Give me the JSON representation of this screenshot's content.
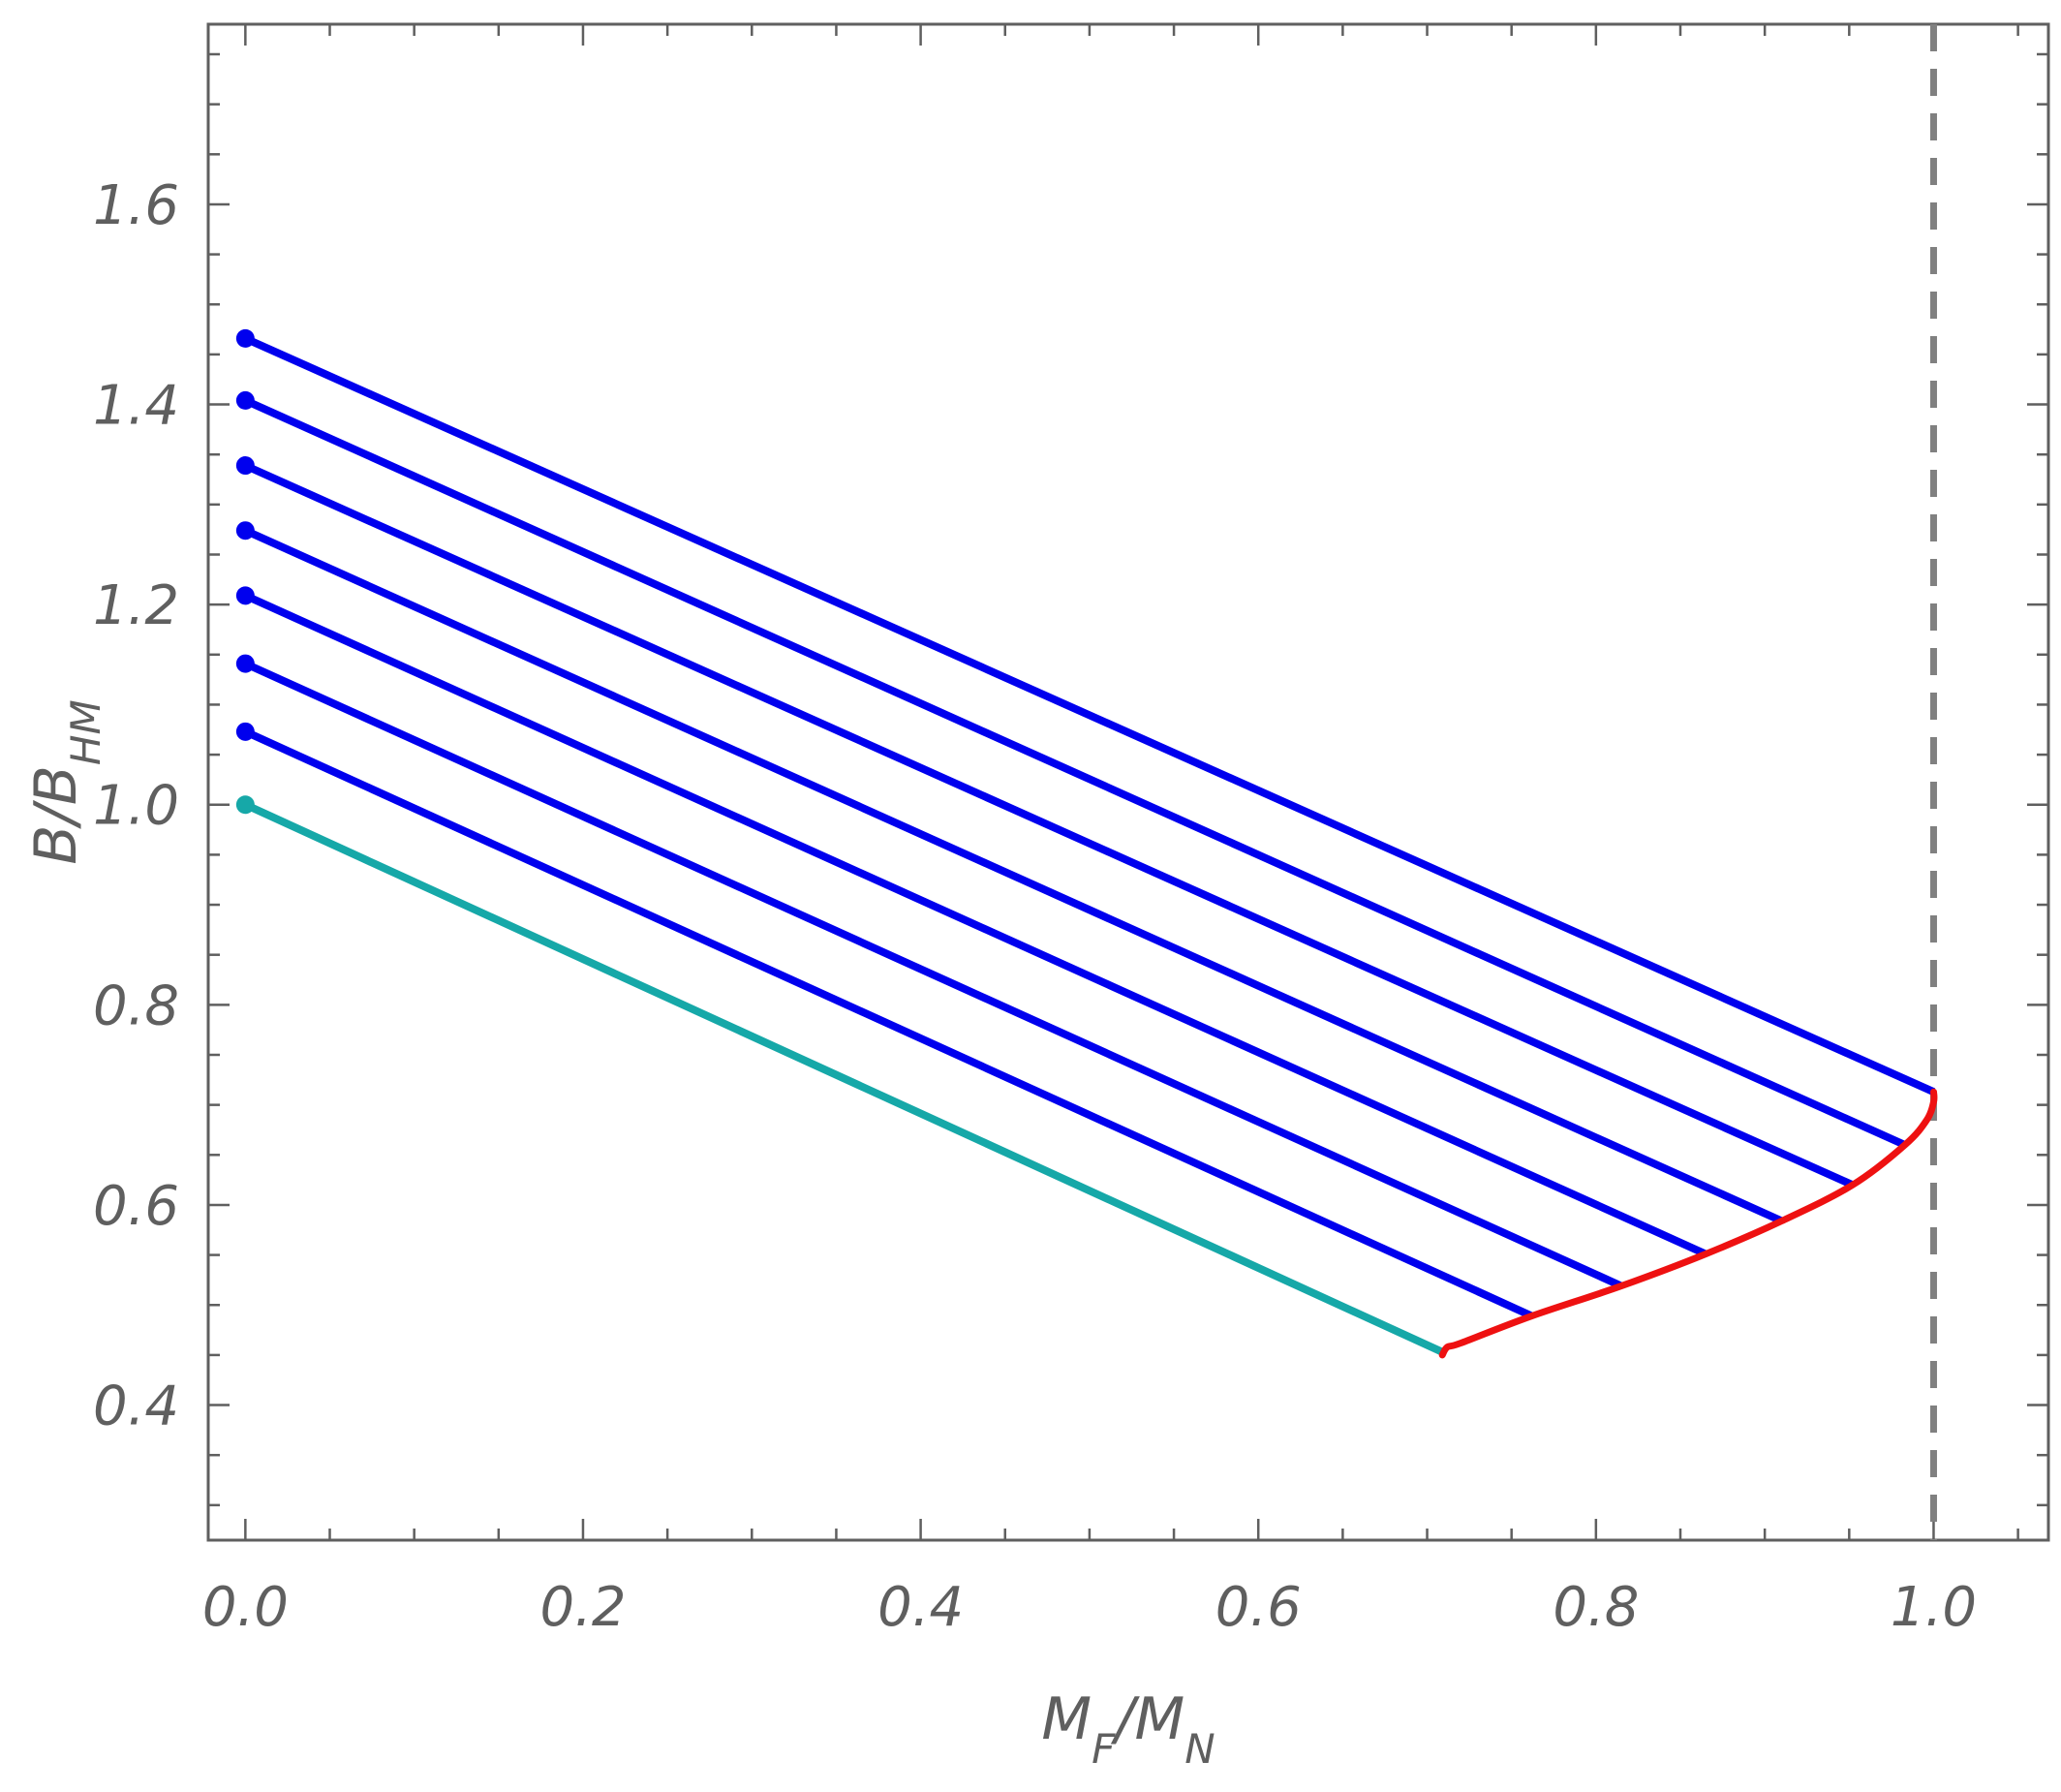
{
  "chart_data": {
    "type": "line",
    "xlabel": {
      "main": "M",
      "sub": "F",
      "sep": "/",
      "main2": "M",
      "sub2": "N"
    },
    "ylabel": {
      "main": "B",
      "sep": "/",
      "main2": "B",
      "sub2": "HM"
    },
    "xlim": [
      -0.022,
      1.068
    ],
    "ylim": [
      0.265,
      1.78
    ],
    "x_ticks": [
      0.0,
      0.2,
      0.4,
      0.6,
      0.8,
      1.0
    ],
    "x_tick_labels": [
      "0.0",
      "0.2",
      "0.4",
      "0.6",
      "0.8",
      "1.0"
    ],
    "y_ticks": [
      0.4,
      0.6,
      0.8,
      1.0,
      1.2,
      1.4,
      1.6
    ],
    "y_tick_labels": [
      "0.4",
      "0.6",
      "0.8",
      "1.0",
      "1.2",
      "1.4",
      "1.6"
    ],
    "grid": false,
    "legend": "none",
    "colors": {
      "blue": "#0000ee",
      "teal": "#16a8a8",
      "red": "#ee1111",
      "dashed": "#808080",
      "frame": "#5f5f5f"
    },
    "series": [
      {
        "color": "teal",
        "x": [
          0.0,
          0.709
        ],
        "y": [
          1.0,
          0.453
        ],
        "start_marker": true
      },
      {
        "color": "blue",
        "x": [
          0.0,
          0.762
        ],
        "y": [
          1.073,
          0.489
        ],
        "start_marker": true
      },
      {
        "color": "blue",
        "x": [
          0.0,
          0.815
        ],
        "y": [
          1.141,
          0.519
        ],
        "start_marker": true
      },
      {
        "color": "blue",
        "x": [
          0.0,
          0.865
        ],
        "y": [
          1.209,
          0.551
        ],
        "start_marker": true
      },
      {
        "color": "blue",
        "x": [
          0.0,
          0.91
        ],
        "y": [
          1.274,
          0.584
        ],
        "start_marker": true
      },
      {
        "color": "blue",
        "x": [
          0.0,
          0.952
        ],
        "y": [
          1.339,
          0.62
        ],
        "start_marker": true
      },
      {
        "color": "blue",
        "x": [
          0.0,
          0.983
        ],
        "y": [
          1.404,
          0.66
        ],
        "start_marker": true
      },
      {
        "color": "blue",
        "x": [
          0.0,
          1.0
        ],
        "y": [
          1.466,
          0.713
        ],
        "start_marker": true
      }
    ],
    "boundary_curve": {
      "color": "red",
      "x": [
        0.709,
        0.712,
        0.72,
        0.762,
        0.815,
        0.865,
        0.91,
        0.952,
        0.983,
        0.996,
        1.0,
        1.0
      ],
      "y": [
        0.45,
        0.458,
        0.462,
        0.489,
        0.519,
        0.551,
        0.584,
        0.62,
        0.66,
        0.685,
        0.703,
        0.713
      ]
    },
    "reference_line": {
      "type": "vertical",
      "x": 1.0,
      "style": "dashed",
      "color": "dashed"
    }
  }
}
